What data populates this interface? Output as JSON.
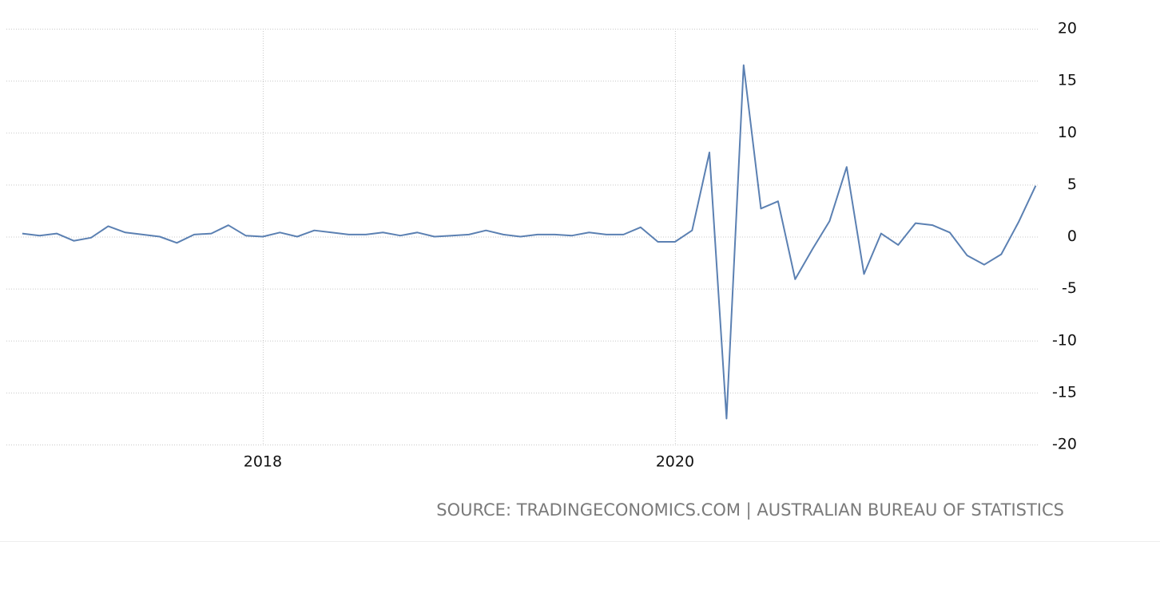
{
  "chart_data": {
    "type": "line",
    "source": "SOURCE: TRADINGECONOMICS.COM | AUSTRALIAN BUREAU OF STATISTICS",
    "x": [
      2016.833,
      2016.917,
      2017,
      2017.083,
      2017.167,
      2017.25,
      2017.333,
      2017.417,
      2017.5,
      2017.583,
      2017.667,
      2017.75,
      2017.833,
      2017.917,
      2018,
      2018.083,
      2018.167,
      2018.25,
      2018.333,
      2018.417,
      2018.5,
      2018.583,
      2018.667,
      2018.75,
      2018.833,
      2018.917,
      2019,
      2019.083,
      2019.167,
      2019.25,
      2019.333,
      2019.417,
      2019.5,
      2019.583,
      2019.667,
      2019.75,
      2019.833,
      2019.917,
      2020,
      2020.083,
      2020.167,
      2020.25,
      2020.333,
      2020.417,
      2020.5,
      2020.583,
      2020.667,
      2020.75,
      2020.833,
      2020.917,
      2021,
      2021.083,
      2021.167,
      2021.25,
      2021.333,
      2021.417,
      2021.5,
      2021.583,
      2021.667,
      2021.75
    ],
    "series": [
      {
        "color": "#5b80b2",
        "values": [
          0.3,
          0.1,
          0.3,
          -0.4,
          -0.1,
          1.0,
          0.4,
          0.2,
          0.0,
          -0.6,
          0.2,
          0.3,
          1.1,
          0.1,
          0.0,
          0.4,
          0.0,
          0.6,
          0.4,
          0.2,
          0.2,
          0.4,
          0.1,
          0.4,
          0.0,
          0.1,
          0.2,
          0.6,
          0.2,
          0.0,
          0.2,
          0.2,
          0.1,
          0.4,
          0.2,
          0.2,
          0.9,
          -0.5,
          -0.5,
          0.6,
          8.1,
          -17.5,
          16.5,
          2.7,
          3.4,
          -4.1,
          -1.2,
          1.5,
          6.7,
          -3.6,
          0.3,
          -0.8,
          1.3,
          1.1,
          0.4,
          -1.8,
          -2.7,
          -1.7,
          1.4,
          4.9
        ]
      }
    ],
    "xlim": [
      2016.756,
      2021.764
    ],
    "xticks": [
      2018,
      2020
    ],
    "ylim": [
      -20,
      20
    ],
    "yticks": [
      -20,
      -15,
      -10,
      -5,
      0,
      5,
      10,
      15,
      20
    ],
    "grid": true
  }
}
